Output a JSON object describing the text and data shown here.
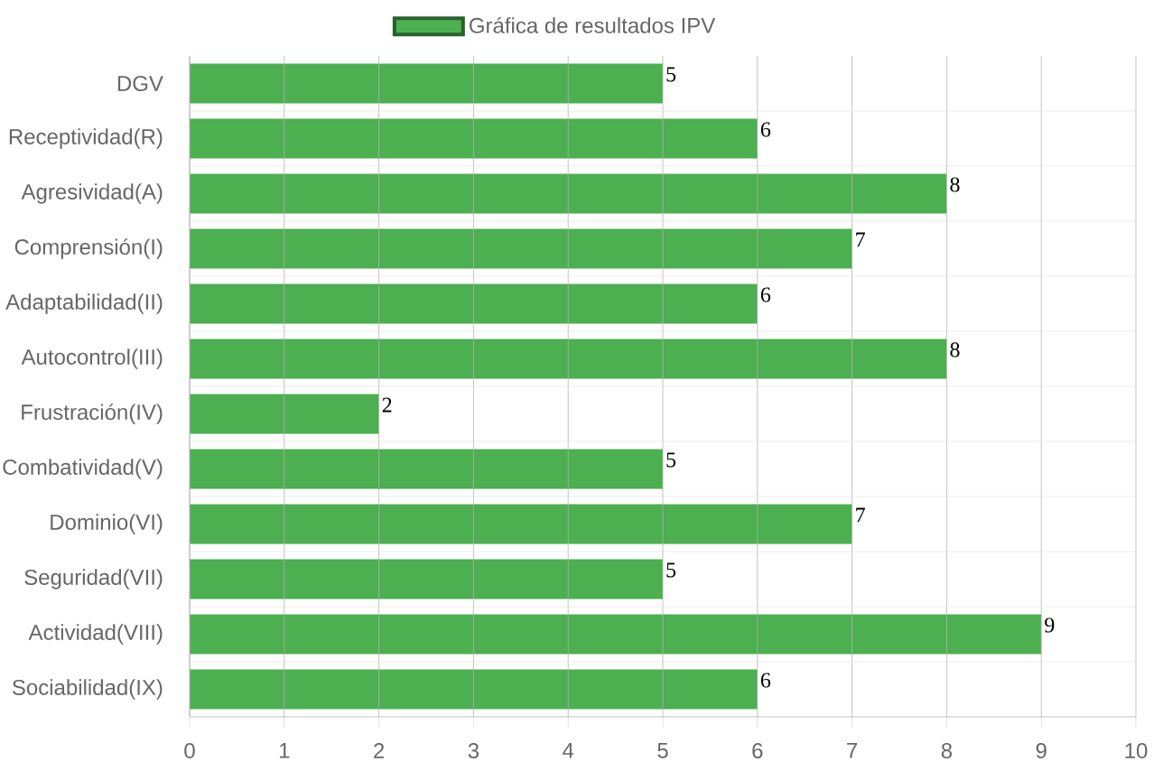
{
  "chart_data": {
    "type": "bar",
    "orientation": "horizontal",
    "categories": [
      "DGV",
      "Receptividad(R)",
      "Agresividad(A)",
      "Comprensión(I)",
      "Adaptabilidad(II)",
      "Autocontrol(III)",
      "Frustración(IV)",
      "Combatividad(V)",
      "Dominio(VI)",
      "Seguridad(VII)",
      "Actividad(VIII)",
      "Sociabilidad(IX)"
    ],
    "series": [
      {
        "name": "Gráfica de resultados IPV",
        "color": "#4caf50",
        "values": [
          5,
          6,
          8,
          7,
          6,
          8,
          2,
          5,
          7,
          5,
          9,
          6
        ]
      }
    ],
    "xlim": [
      0,
      10
    ],
    "xticks": [
      0,
      1,
      2,
      3,
      4,
      5,
      6,
      7,
      8,
      9,
      10
    ],
    "grid": true,
    "legend": "top",
    "data_labels": true
  }
}
